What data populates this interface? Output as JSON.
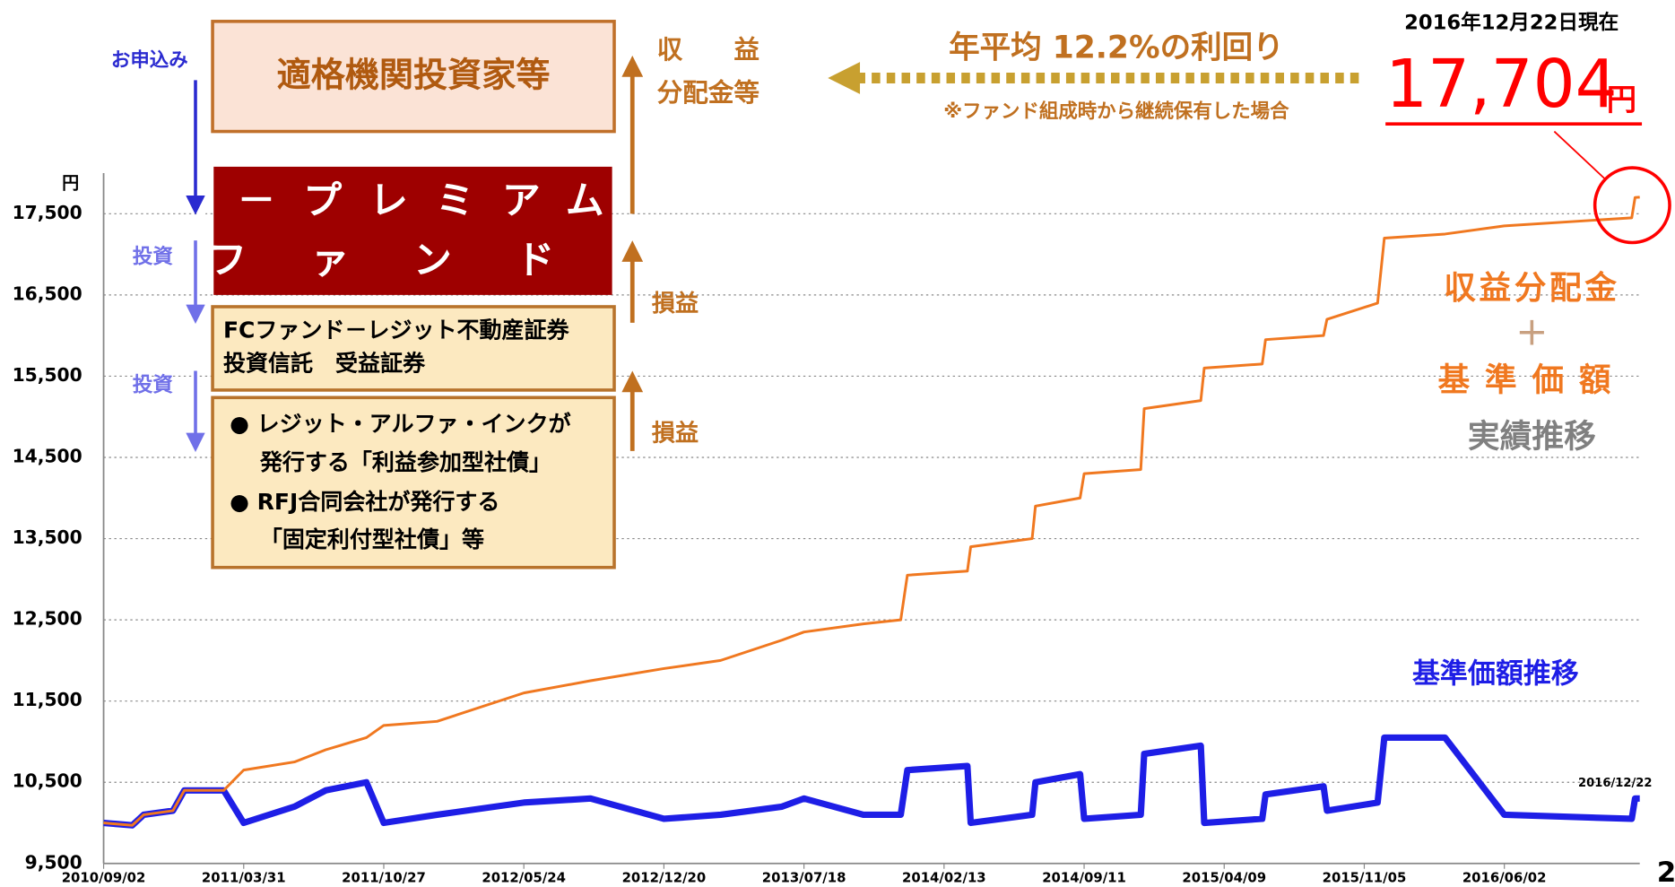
{
  "chart_data": {
    "type": "line",
    "y_unit": "円",
    "x": [
      "2010/09/02",
      "2010/10/15",
      "2010/11/01",
      "2010/12/15",
      "2011/01/01",
      "2011/03/01",
      "2011/03/31",
      "2011/06/15",
      "2011/08/01",
      "2011/10/01",
      "2011/10/27",
      "2012/01/15",
      "2012/05/24",
      "2012/09/01",
      "2012/12/20",
      "2013/03/15",
      "2013/06/15",
      "2013/07/18",
      "2013/10/15",
      "2013/12/10",
      "2013/12/20",
      "2014/03/20",
      "2014/03/25",
      "2014/06/25",
      "2014/06/30",
      "2014/09/05",
      "2014/09/11",
      "2014/12/05",
      "2014/12/10",
      "2015/03/05",
      "2015/03/10",
      "2015/06/05",
      "2015/06/10",
      "2015/09/05",
      "2015/09/10",
      "2015/11/25",
      "2015/12/05",
      "2016/03/05",
      "2016/06/02",
      "2016/12/10",
      "2016/12/15",
      "2016/12/22"
    ],
    "series": [
      {
        "name": "収益分配金＋基準価額",
        "color": "#f07820",
        "values": [
          10000,
          9970,
          10100,
          10150,
          10400,
          10400,
          10650,
          10750,
          10900,
          11050,
          11200,
          11250,
          11600,
          11750,
          11900,
          12000,
          12250,
          12350,
          12450,
          12500,
          13050,
          13100,
          13400,
          13500,
          13900,
          14000,
          14300,
          14350,
          15100,
          15200,
          15600,
          15650,
          15950,
          16000,
          16200,
          16400,
          17200,
          17250,
          17350,
          17450,
          17700,
          17704
        ]
      },
      {
        "name": "基準価額推移",
        "color": "#1e1ee6",
        "values": [
          10000,
          9970,
          10100,
          10150,
          10400,
          10400,
          10000,
          10200,
          10400,
          10500,
          10000,
          10100,
          10250,
          10300,
          10050,
          10100,
          10200,
          10300,
          10100,
          10100,
          10650,
          10700,
          10000,
          10100,
          10500,
          10600,
          10050,
          10100,
          10850,
          10950,
          10000,
          10050,
          10350,
          10450,
          10150,
          10250,
          11050,
          11050,
          10100,
          10050,
          10300,
          10300
        ]
      }
    ],
    "xlim": [
      "2010/09/02",
      "2016/12/22"
    ],
    "xticks": [
      "2010/09/02",
      "2011/03/31",
      "2011/10/27",
      "2012/05/24",
      "2012/12/20",
      "2013/07/18",
      "2014/02/13",
      "2014/09/11",
      "2015/04/09",
      "2015/11/05",
      "2016/06/02"
    ],
    "ylim": [
      9500,
      18000
    ],
    "yticks": [
      {
        "value": 9500,
        "label": "9,500"
      },
      {
        "value": 10500,
        "label": "10,500"
      },
      {
        "value": 11500,
        "label": "11,500"
      },
      {
        "value": 12500,
        "label": "12,500"
      },
      {
        "value": 13500,
        "label": "13,500"
      },
      {
        "value": 14500,
        "label": "14,500"
      },
      {
        "value": 15500,
        "label": "15,500"
      },
      {
        "value": 16500,
        "label": "16,500"
      },
      {
        "value": 17500,
        "label": "17,500"
      }
    ],
    "grid": true,
    "end_date_label": "2016/12/22",
    "as_of": "2016年12月22日現在",
    "latest_value": "17,704",
    "latest_unit": "円",
    "legend_orange": [
      "収益分配金",
      "＋",
      "基準価額"
    ],
    "legend_orange_sub": "実績推移",
    "legend_blue": "基準価額推移"
  },
  "diagram": {
    "apply": "お申込み",
    "investor": "適格機関投資家等",
    "fund": [
      "J－プレミアム",
      "ファンド"
    ],
    "invest": [
      "投資",
      "投資"
    ],
    "trust": [
      "FCファンド－レジット不動産証券",
      "投資信託　受益証券"
    ],
    "bonds": [
      "●  レジット・アルファ・インクが",
      "　 発行する「利益参加型社債」",
      "●  RFJ合同会社が発行する",
      "　 「固定利付型社債」等"
    ],
    "return": [
      "収　　益",
      "分配金等"
    ],
    "pl": [
      "損益",
      "損益"
    ],
    "yield": "年平均 12.2%の利回り",
    "yield_note": "※ファンド組成時から継続保有した場合"
  },
  "page_number": "2"
}
